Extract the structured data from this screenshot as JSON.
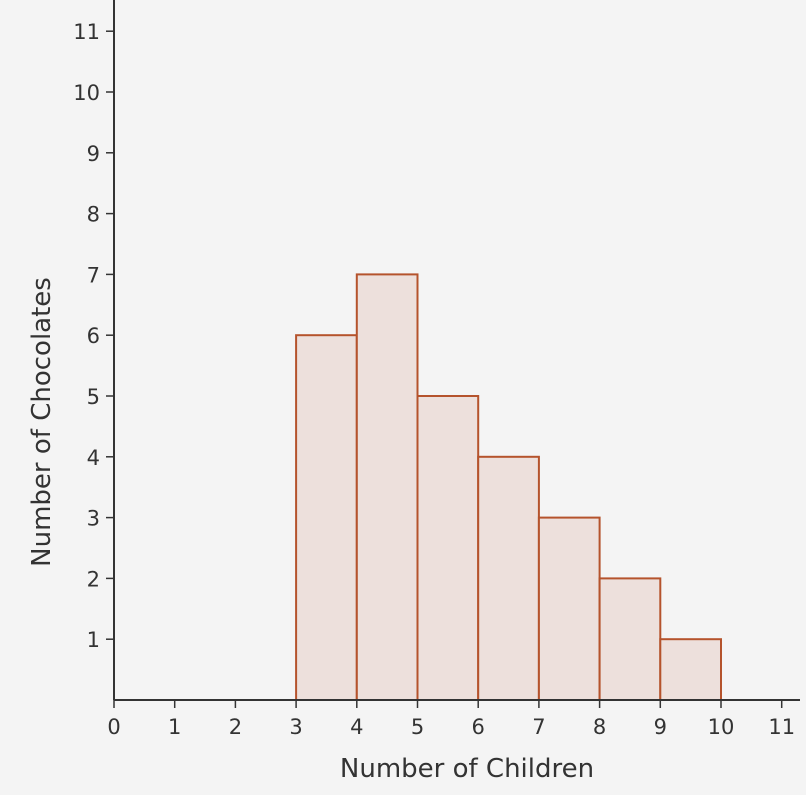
{
  "chart_data": {
    "type": "bar",
    "title": "",
    "xlabel": "Number of Children",
    "ylabel": "Number of Chocolates",
    "xlim": [
      0,
      11
    ],
    "ylim": [
      0,
      11
    ],
    "xticks": [
      "0",
      "1",
      "2",
      "3",
      "4",
      "5",
      "6",
      "7",
      "8",
      "9",
      "10",
      "11"
    ],
    "yticks": [
      "1",
      "2",
      "3",
      "4",
      "5",
      "6",
      "7",
      "8",
      "9",
      "10",
      "11"
    ],
    "bins": [
      {
        "x0": 3,
        "x1": 4,
        "value": 6
      },
      {
        "x0": 4,
        "x1": 5,
        "value": 7
      },
      {
        "x0": 5,
        "x1": 6,
        "value": 5
      },
      {
        "x0": 6,
        "x1": 7,
        "value": 4
      },
      {
        "x0": 7,
        "x1": 8,
        "value": 3
      },
      {
        "x0": 8,
        "x1": 9,
        "value": 2
      },
      {
        "x0": 9,
        "x1": 10,
        "value": 1
      }
    ],
    "grid": false,
    "colors": {
      "bar_fill": "#ede0dc",
      "bar_stroke": "#b5532c",
      "axis": "#333333",
      "background": "#f4f4f4"
    }
  }
}
